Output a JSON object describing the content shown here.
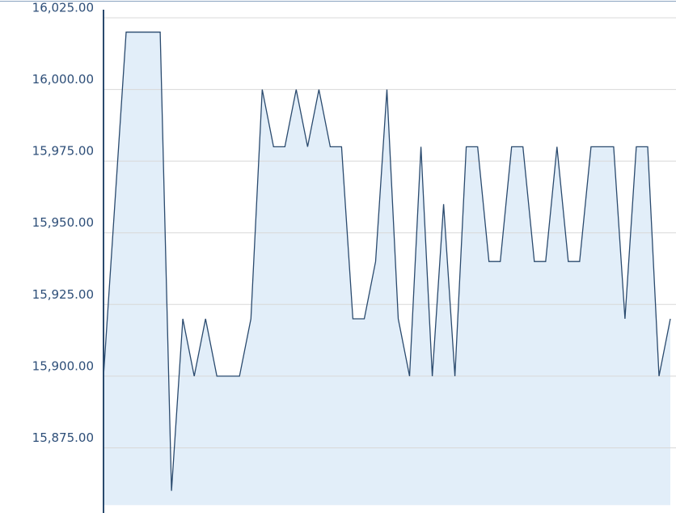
{
  "chart_data": {
    "type": "area",
    "categories": [
      null,
      null,
      null,
      null,
      null,
      null,
      null,
      null,
      null,
      null,
      null,
      null,
      null,
      null,
      null,
      null,
      null,
      null,
      null,
      null,
      null,
      null,
      null,
      null,
      null,
      null,
      null,
      null,
      null,
      null,
      null,
      null,
      null,
      null,
      null,
      null,
      null,
      null,
      null,
      null,
      null,
      null,
      null,
      null,
      null,
      null,
      null,
      null,
      null,
      null,
      null
    ],
    "series": [
      {
        "color": "#2a4a6e",
        "fill": "#e2eef9",
        "values": [
          15900,
          15960,
          16020,
          16020,
          16020,
          16020,
          15860,
          15920,
          15900,
          15920,
          15900,
          15900,
          15900,
          15920,
          16000,
          15980,
          15980,
          16000,
          15980,
          16000,
          15980,
          15980,
          15920,
          15920,
          15940,
          16000,
          15920,
          15900,
          15980,
          15900,
          15960,
          15900,
          15980,
          15980,
          15940,
          15940,
          15980,
          15980,
          15940,
          15940,
          15980,
          15940,
          15940,
          15980,
          15980,
          15980,
          15920,
          15980,
          15980,
          15900,
          15920
        ]
      }
    ],
    "ylim": [
      15855,
      16030
    ],
    "yticks": [
      {
        "value": 15875,
        "label": "15,875.00"
      },
      {
        "value": 15900,
        "label": "15,900.00"
      },
      {
        "value": 15925,
        "label": "15,925.00"
      },
      {
        "value": 15950,
        "label": "15,950.00"
      },
      {
        "value": 15975,
        "label": "15,975.00"
      },
      {
        "value": 16000,
        "label": "16,000.00"
      },
      {
        "value": 16025,
        "label": "16,025.00"
      }
    ],
    "grid": true
  }
}
